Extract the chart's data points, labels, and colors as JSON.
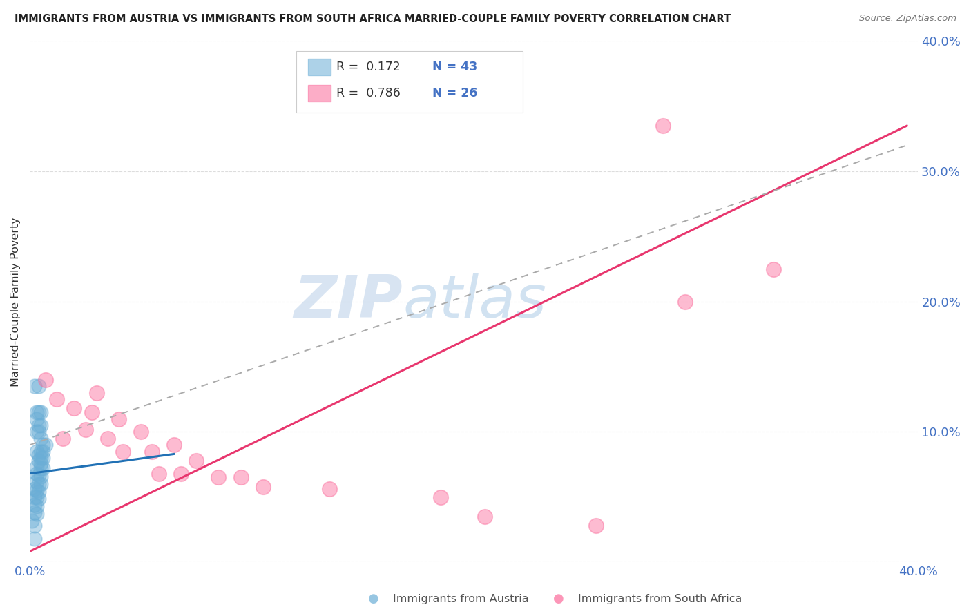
{
  "title": "IMMIGRANTS FROM AUSTRIA VS IMMIGRANTS FROM SOUTH AFRICA MARRIED-COUPLE FAMILY POVERTY CORRELATION CHART",
  "source": "Source: ZipAtlas.com",
  "ylabel": "Married-Couple Family Poverty",
  "xlim": [
    0.0,
    0.4
  ],
  "ylim": [
    0.0,
    0.4
  ],
  "xticks": [
    0.0,
    0.05,
    0.1,
    0.15,
    0.2,
    0.25,
    0.3,
    0.35,
    0.4
  ],
  "yticks": [
    0.0,
    0.1,
    0.2,
    0.3,
    0.4
  ],
  "legend_austria_r": "0.172",
  "legend_austria_n": "43",
  "legend_sa_r": "0.786",
  "legend_sa_n": "26",
  "austria_color": "#6baed6",
  "sa_color": "#fb6a9a",
  "trendline_austria_color": "#2171b5",
  "trendline_sa_color": "#e8366e",
  "trendline_dashed_color": "#aaaaaa",
  "watermark_zip": "ZIP",
  "watermark_atlas": "atlas",
  "background_color": "#ffffff",
  "tick_color": "#4472c4",
  "austria_scatter": [
    [
      0.002,
      0.135
    ],
    [
      0.004,
      0.135
    ],
    [
      0.003,
      0.115
    ],
    [
      0.004,
      0.115
    ],
    [
      0.005,
      0.115
    ],
    [
      0.003,
      0.11
    ],
    [
      0.004,
      0.105
    ],
    [
      0.005,
      0.105
    ],
    [
      0.003,
      0.1
    ],
    [
      0.004,
      0.1
    ],
    [
      0.005,
      0.095
    ],
    [
      0.006,
      0.09
    ],
    [
      0.007,
      0.09
    ],
    [
      0.003,
      0.085
    ],
    [
      0.005,
      0.085
    ],
    [
      0.006,
      0.085
    ],
    [
      0.004,
      0.082
    ],
    [
      0.005,
      0.08
    ],
    [
      0.006,
      0.08
    ],
    [
      0.004,
      0.078
    ],
    [
      0.005,
      0.076
    ],
    [
      0.003,
      0.073
    ],
    [
      0.005,
      0.072
    ],
    [
      0.006,
      0.072
    ],
    [
      0.003,
      0.068
    ],
    [
      0.004,
      0.067
    ],
    [
      0.005,
      0.066
    ],
    [
      0.003,
      0.062
    ],
    [
      0.004,
      0.06
    ],
    [
      0.005,
      0.06
    ],
    [
      0.002,
      0.056
    ],
    [
      0.003,
      0.055
    ],
    [
      0.004,
      0.054
    ],
    [
      0.002,
      0.05
    ],
    [
      0.003,
      0.05
    ],
    [
      0.004,
      0.049
    ],
    [
      0.002,
      0.044
    ],
    [
      0.003,
      0.043
    ],
    [
      0.002,
      0.038
    ],
    [
      0.003,
      0.037
    ],
    [
      0.001,
      0.032
    ],
    [
      0.002,
      0.028
    ],
    [
      0.002,
      0.018
    ]
  ],
  "sa_scatter": [
    [
      0.007,
      0.14
    ],
    [
      0.012,
      0.125
    ],
    [
      0.03,
      0.13
    ],
    [
      0.02,
      0.118
    ],
    [
      0.028,
      0.115
    ],
    [
      0.04,
      0.11
    ],
    [
      0.025,
      0.102
    ],
    [
      0.05,
      0.1
    ],
    [
      0.015,
      0.095
    ],
    [
      0.035,
      0.095
    ],
    [
      0.065,
      0.09
    ],
    [
      0.042,
      0.085
    ],
    [
      0.055,
      0.085
    ],
    [
      0.075,
      0.078
    ],
    [
      0.058,
      0.068
    ],
    [
      0.068,
      0.068
    ],
    [
      0.085,
      0.065
    ],
    [
      0.095,
      0.065
    ],
    [
      0.105,
      0.058
    ],
    [
      0.135,
      0.056
    ],
    [
      0.185,
      0.05
    ],
    [
      0.205,
      0.035
    ],
    [
      0.255,
      0.028
    ],
    [
      0.295,
      0.2
    ],
    [
      0.335,
      0.225
    ],
    [
      0.285,
      0.335
    ]
  ],
  "austria_trendline": [
    [
      0.0,
      0.068
    ],
    [
      0.065,
      0.083
    ]
  ],
  "sa_trendline": [
    [
      -0.01,
      0.0
    ],
    [
      0.395,
      0.335
    ]
  ],
  "dashed_trendline": [
    [
      0.0,
      0.09
    ],
    [
      0.395,
      0.32
    ]
  ]
}
